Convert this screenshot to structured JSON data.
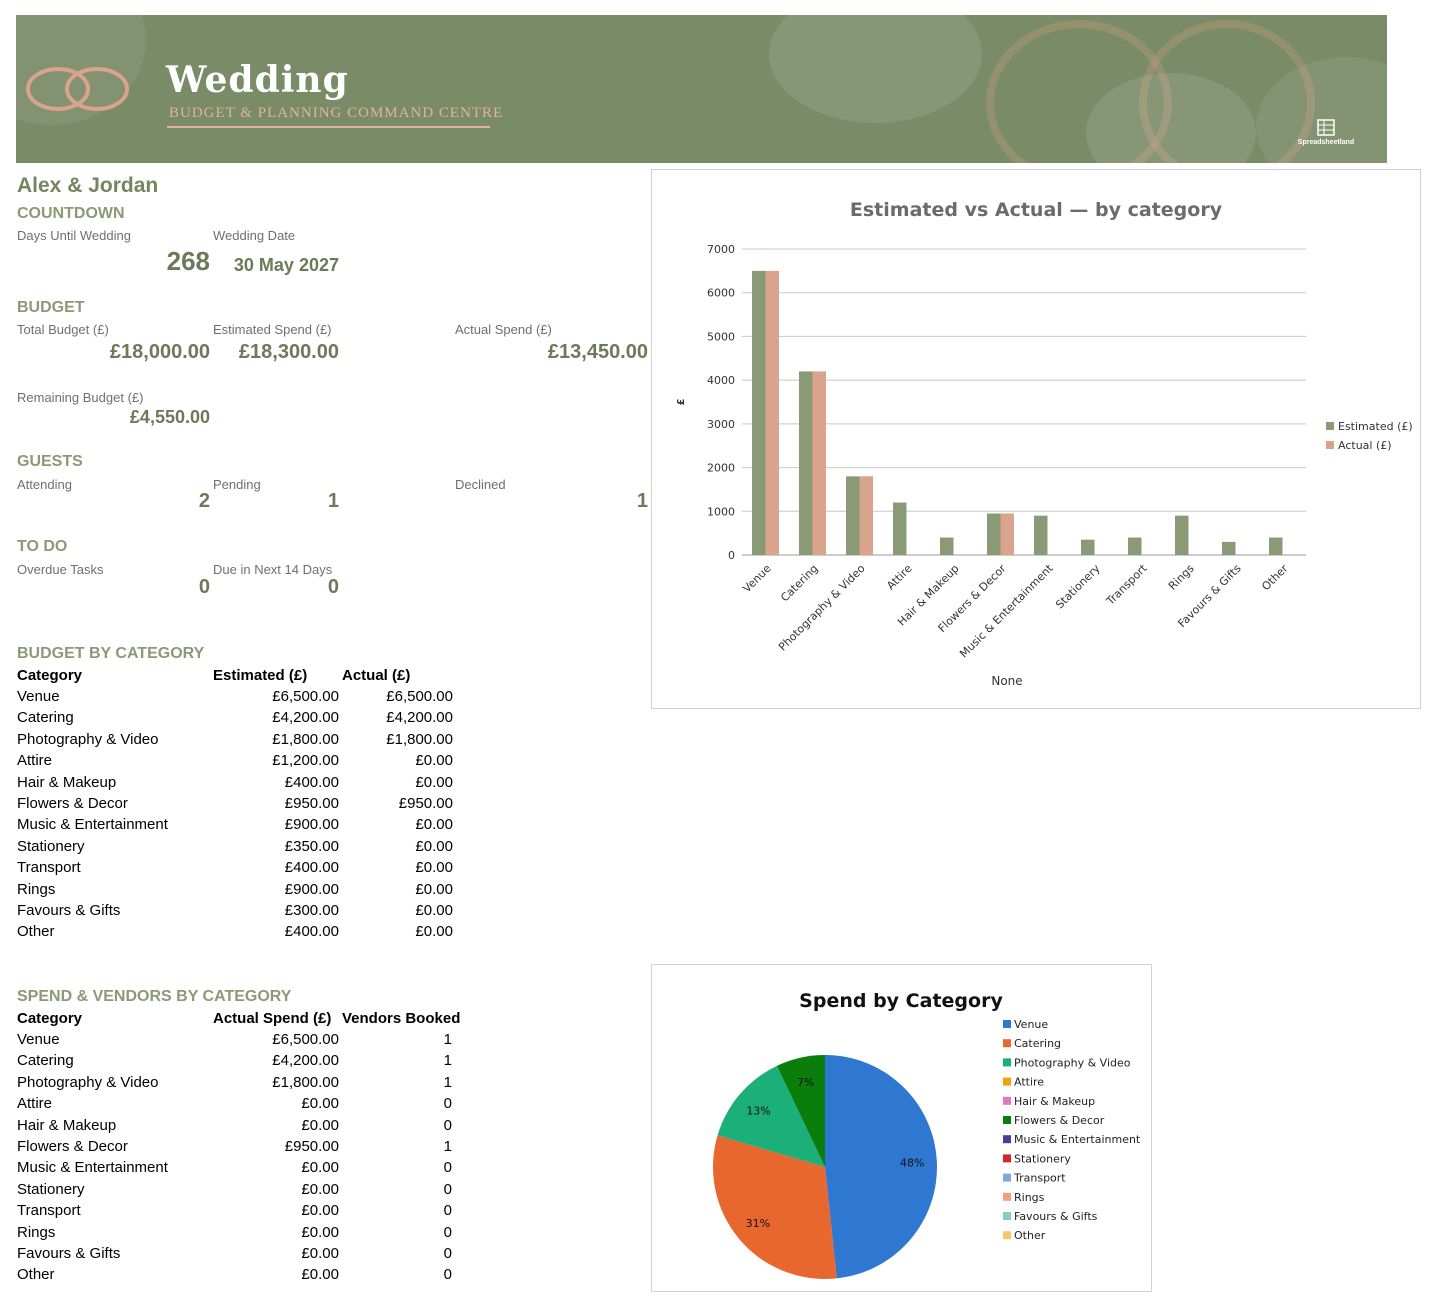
{
  "banner": {
    "title": "Wedding",
    "subtitle": "BUDGET & PLANNING COMMAND CENTRE",
    "logo_text": "Spreadsheetland",
    "colors": {
      "background": "#7a8b67",
      "accent": "#e3b29c"
    }
  },
  "couple": "Alex & Jordan",
  "countdown": {
    "section": "COUNTDOWN",
    "days_label": "Days Until Wedding",
    "days_value": "268",
    "date_label": "Wedding Date",
    "date_value": "30 May 2027"
  },
  "budget": {
    "section": "BUDGET",
    "total_label": "Total Budget (£)",
    "total_value": "£18,000.00",
    "estimated_label": "Estimated Spend (£)",
    "estimated_value": "£18,300.00",
    "actual_label": "Actual Spend (£)",
    "actual_value": "£13,450.00",
    "remaining_label": "Remaining Budget (£)",
    "remaining_value": "£4,550.00"
  },
  "guests": {
    "section": "GUESTS",
    "attending_label": "Attending",
    "attending_value": "2",
    "pending_label": "Pending",
    "pending_value": "1",
    "declined_label": "Declined",
    "declined_value": "1"
  },
  "todo": {
    "section": "TO DO",
    "overdue_label": "Overdue Tasks",
    "overdue_value": "0",
    "due_label": "Due in Next 14 Days",
    "due_value": "0"
  },
  "budget_table": {
    "section": "BUDGET BY CATEGORY",
    "headers": [
      "Category",
      "Estimated (£)",
      "Actual (£)"
    ],
    "rows": [
      [
        "Venue",
        "£6,500.00",
        "£6,500.00"
      ],
      [
        "Catering",
        "£4,200.00",
        "£4,200.00"
      ],
      [
        "Photography & Video",
        "£1,800.00",
        "£1,800.00"
      ],
      [
        "Attire",
        "£1,200.00",
        "£0.00"
      ],
      [
        "Hair & Makeup",
        "£400.00",
        "£0.00"
      ],
      [
        "Flowers & Decor",
        "£950.00",
        "£950.00"
      ],
      [
        "Music & Entertainment",
        "£900.00",
        "£0.00"
      ],
      [
        "Stationery",
        "£350.00",
        "£0.00"
      ],
      [
        "Transport",
        "£400.00",
        "£0.00"
      ],
      [
        "Rings",
        "£900.00",
        "£0.00"
      ],
      [
        "Favours & Gifts",
        "£300.00",
        "£0.00"
      ],
      [
        "Other",
        "£400.00",
        "£0.00"
      ]
    ]
  },
  "vendor_table": {
    "section": "SPEND & VENDORS BY CATEGORY",
    "headers": [
      "Category",
      "Actual Spend (£)",
      "Vendors Booked"
    ],
    "rows": [
      [
        "Venue",
        "£6,500.00",
        "1"
      ],
      [
        "Catering",
        "£4,200.00",
        "1"
      ],
      [
        "Photography & Video",
        "£1,800.00",
        "1"
      ],
      [
        "Attire",
        "£0.00",
        "0"
      ],
      [
        "Hair & Makeup",
        "£0.00",
        "0"
      ],
      [
        "Flowers & Decor",
        "£950.00",
        "1"
      ],
      [
        "Music & Entertainment",
        "£0.00",
        "0"
      ],
      [
        "Stationery",
        "£0.00",
        "0"
      ],
      [
        "Transport",
        "£0.00",
        "0"
      ],
      [
        "Rings",
        "£0.00",
        "0"
      ],
      [
        "Favours & Gifts",
        "£0.00",
        "0"
      ],
      [
        "Other",
        "£0.00",
        "0"
      ]
    ]
  },
  "chart_data": [
    {
      "type": "bar",
      "title": "Estimated vs Actual — by category",
      "xlabel": "None",
      "ylabel": "£",
      "ylim": [
        0,
        7000
      ],
      "yticks": [
        0,
        1000,
        2000,
        3000,
        4000,
        5000,
        6000,
        7000
      ],
      "grid": true,
      "legend": "right",
      "categories": [
        "Venue",
        "Catering",
        "Photography & Video",
        "Attire",
        "Hair & Makeup",
        "Flowers & Decor",
        "Music & Entertainment",
        "Stationery",
        "Transport",
        "Rings",
        "Favours & Gifts",
        "Other"
      ],
      "series": [
        {
          "name": "Estimated (£)",
          "color": "#8b9a76",
          "values": [
            6500,
            4200,
            1800,
            1200,
            400,
            950,
            900,
            350,
            400,
            900,
            300,
            400
          ]
        },
        {
          "name": "Actual (£)",
          "color": "#d9a38c",
          "values": [
            6500,
            4200,
            1800,
            0,
            0,
            950,
            0,
            0,
            0,
            0,
            0,
            0
          ]
        }
      ]
    },
    {
      "type": "pie",
      "title": "Spend by Category",
      "legend": "right",
      "categories": [
        "Venue",
        "Catering",
        "Photography & Video",
        "Attire",
        "Hair & Makeup",
        "Flowers & Decor",
        "Music & Entertainment",
        "Stationery",
        "Transport",
        "Rings",
        "Favours & Gifts",
        "Other"
      ],
      "values": [
        6500,
        4200,
        1800,
        0,
        0,
        950,
        0,
        0,
        0,
        0,
        0,
        0
      ],
      "labels": [
        "48%",
        "31%",
        "13%",
        "",
        "",
        "7%",
        "",
        "",
        "",
        "",
        "",
        ""
      ],
      "colors": [
        "#2e78d2",
        "#e8672f",
        "#1baf7a",
        "#f0a30a",
        "#e377c2",
        "#0a7d0a",
        "#4b3b9a",
        "#d62728",
        "#7fa8e0",
        "#f2a07b",
        "#7fd3b0",
        "#f5c96a"
      ]
    }
  ]
}
